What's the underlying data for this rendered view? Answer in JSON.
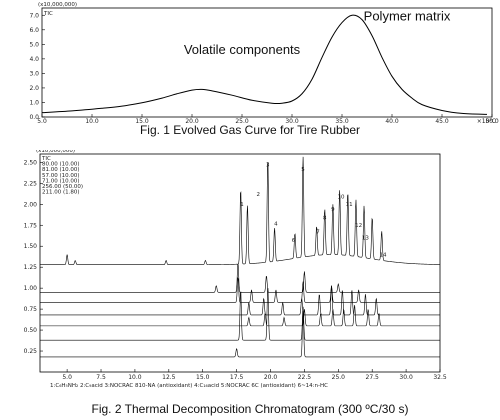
{
  "fig1": {
    "caption": "Fig. 1 Evolved Gas Curve for Tire Rubber",
    "scale_note": "(x10,000,000)",
    "series_label": "TIC",
    "x_unit": "×10²C",
    "annotations": [
      "Volatile components",
      "Polymer matrix"
    ]
  },
  "fig2": {
    "caption": "Fig. 2 Thermal Decomposition Chromatogram (300 ºC/30 s)",
    "scale_note": "(x10,000,000)",
    "legend": [
      "TIC",
      "80.00 (10.00)",
      "81.00 (10.00)",
      "57.00 (10.00)",
      "71.00 (10.00)",
      "256.00 (50.00)",
      "211.00 (1.80)"
    ],
    "peak_key": "1:C₆H₅NH₂    2:C₉acid    3:NOCRAC 810-NA (antioxidant)    4:C₁₆acid    5:NOCRAC 6C (antioxidant)    6~14:n-HC",
    "peak_labels": [
      "1",
      "2",
      "3",
      "4",
      "5",
      "6",
      "7",
      "8",
      "9",
      "10",
      "11",
      "12",
      "13",
      "14"
    ]
  },
  "chart_data": [
    {
      "type": "line",
      "title": "",
      "xlabel": "×10²C",
      "ylabel": "",
      "xlim": [
        5.0,
        50.0
      ],
      "ylim": [
        0.0,
        7.5
      ],
      "x_ticks": [
        5.0,
        10.0,
        15.0,
        20.0,
        25.0,
        30.0,
        35.0,
        40.0,
        45.0,
        50.0
      ],
      "y_ticks": [
        0.0,
        1.0,
        2.0,
        3.0,
        4.0,
        5.0,
        6.0,
        7.0
      ],
      "series": [
        {
          "name": "TIC",
          "x": [
            5,
            8,
            11,
            13,
            15,
            17,
            18.5,
            20,
            21,
            22,
            24,
            26,
            28,
            29,
            30,
            31,
            32,
            33,
            34,
            35,
            36,
            37,
            38,
            39,
            40,
            41,
            42,
            43,
            45,
            47,
            49.5
          ],
          "y": [
            0.3,
            0.42,
            0.6,
            0.75,
            0.98,
            1.3,
            1.6,
            1.85,
            1.9,
            1.8,
            1.5,
            1.15,
            0.95,
            0.95,
            1.1,
            1.6,
            2.6,
            4.1,
            5.5,
            6.5,
            7.0,
            6.7,
            5.6,
            4.1,
            2.8,
            1.9,
            1.3,
            0.85,
            0.45,
            0.25,
            0.18
          ]
        }
      ],
      "annotations": [
        "Volatile components",
        "Polymer matrix"
      ]
    },
    {
      "type": "line",
      "title": "",
      "xlabel": "",
      "ylabel": "",
      "xlim": [
        3.0,
        32.5
      ],
      "ylim": [
        0.0,
        2.6
      ],
      "x_ticks": [
        5.0,
        7.5,
        10.0,
        12.5,
        15.0,
        17.5,
        20.0,
        22.5,
        25.0,
        27.5,
        30.0,
        32.5
      ],
      "y_ticks": [
        0.25,
        0.5,
        0.75,
        1.0,
        1.25,
        1.5,
        1.75,
        2.0,
        2.25,
        2.5
      ],
      "series": [
        {
          "name": "TIC",
          "baseline": 1.28,
          "peaks": [
            [
              5.0,
              0.12
            ],
            [
              5.6,
              0.05
            ],
            [
              12.3,
              0.05
            ],
            [
              15.2,
              0.05
            ],
            [
              17.8,
              0.9
            ],
            [
              18.3,
              0.7
            ],
            [
              19.8,
              1.25
            ],
            [
              20.3,
              0.4
            ],
            [
              21.8,
              0.3
            ],
            [
              22.4,
              1.2
            ],
            [
              23.4,
              0.35
            ],
            [
              24.0,
              0.55
            ],
            [
              24.6,
              0.6
            ],
            [
              25.1,
              0.78
            ],
            [
              25.7,
              0.76
            ],
            [
              26.3,
              0.68
            ],
            [
              26.9,
              0.62
            ],
            [
              27.5,
              0.5
            ],
            [
              28.2,
              0.35
            ]
          ]
        },
        {
          "name": "80.00 (10.00)",
          "baseline": 0.95,
          "peaks": [
            [
              16.0,
              0.08
            ],
            [
              17.6,
              0.35
            ],
            [
              19.7,
              0.2
            ],
            [
              22.5,
              0.25
            ],
            [
              25.0,
              0.1
            ]
          ]
        },
        {
          "name": "81.00 (10.00)",
          "baseline": 0.83,
          "peaks": [
            [
              17.6,
              0.3
            ],
            [
              18.6,
              0.15
            ],
            [
              20.4,
              0.15
            ],
            [
              22.4,
              0.25
            ],
            [
              24.5,
              0.2
            ],
            [
              26.5,
              0.15
            ]
          ]
        },
        {
          "name": "57.00 (10.00)",
          "baseline": 0.68,
          "peaks": [
            [
              18.4,
              0.15
            ],
            [
              19.5,
              0.2
            ],
            [
              20.9,
              0.15
            ],
            [
              22.3,
              0.2
            ],
            [
              23.6,
              0.25
            ],
            [
              24.5,
              0.35
            ],
            [
              25.3,
              0.3
            ],
            [
              26.0,
              0.3
            ],
            [
              27.0,
              0.25
            ],
            [
              27.8,
              0.2
            ]
          ]
        },
        {
          "name": "71.00 (10.00)",
          "baseline": 0.55,
          "peaks": [
            [
              18.4,
              0.1
            ],
            [
              19.6,
              0.15
            ],
            [
              21.0,
              0.1
            ],
            [
              22.5,
              0.2
            ],
            [
              23.7,
              0.15
            ],
            [
              24.6,
              0.2
            ],
            [
              25.4,
              0.2
            ],
            [
              26.2,
              0.25
            ],
            [
              27.2,
              0.2
            ],
            [
              28.0,
              0.15
            ]
          ]
        },
        {
          "name": "256.00 (50.00)",
          "baseline": 0.38,
          "peaks": [
            [
              17.8,
              0.6
            ],
            [
              19.8,
              0.65
            ],
            [
              22.4,
              0.4
            ]
          ]
        },
        {
          "name": "211.00 (1.80)",
          "baseline": 0.18,
          "peaks": [
            [
              17.5,
              0.1
            ],
            [
              22.4,
              0.55
            ]
          ]
        }
      ],
      "peak_numbers": [
        {
          "label": "1",
          "x": 17.9,
          "y": 1.98
        },
        {
          "label": "2",
          "x": 19.1,
          "y": 2.1
        },
        {
          "label": "3",
          "x": 19.8,
          "y": 2.45
        },
        {
          "label": "4",
          "x": 20.4,
          "y": 1.75
        },
        {
          "label": "5",
          "x": 22.4,
          "y": 2.4
        },
        {
          "label": "6",
          "x": 21.7,
          "y": 1.55
        },
        {
          "label": "7",
          "x": 23.5,
          "y": 1.65
        },
        {
          "label": "8",
          "x": 24.0,
          "y": 1.82
        },
        {
          "label": "9",
          "x": 24.6,
          "y": 1.92
        },
        {
          "label": "10",
          "x": 25.2,
          "y": 2.07
        },
        {
          "label": "11",
          "x": 25.8,
          "y": 1.98
        },
        {
          "label": "12",
          "x": 26.5,
          "y": 1.73
        },
        {
          "label": "13",
          "x": 27.0,
          "y": 1.58
        },
        {
          "label": "14",
          "x": 28.3,
          "y": 1.38
        }
      ]
    }
  ]
}
